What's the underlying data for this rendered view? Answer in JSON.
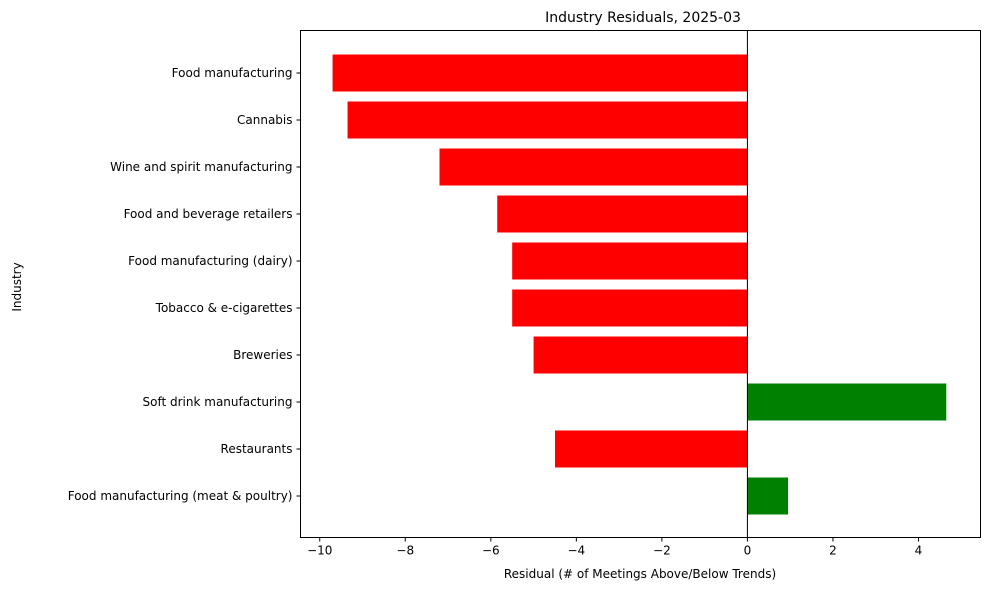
{
  "chart_data": {
    "type": "bar",
    "orientation": "horizontal",
    "title": "Industry Residuals, 2025-03",
    "xlabel": "Residual (# of Meetings Above/Below Trends)",
    "ylabel": "Industry",
    "xlim": [
      -10.45,
      5.45
    ],
    "xticks": [
      -10,
      -8,
      -6,
      -4,
      -2,
      0,
      2,
      4
    ],
    "xtick_labels": [
      "−10",
      "−8",
      "−6",
      "−4",
      "−2",
      "0",
      "2",
      "4"
    ],
    "categories": [
      "Food manufacturing",
      "Cannabis",
      "Wine and spirit manufacturing",
      "Food and beverage retailers",
      "Food manufacturing (dairy)",
      "Tobacco & e-cigarettes",
      "Breweries",
      "Soft drink manufacturing",
      "Restaurants",
      "Food manufacturing (meat & poultry)"
    ],
    "values": [
      -9.7,
      -9.35,
      -7.2,
      -5.85,
      -5.5,
      -5.5,
      -5.0,
      4.65,
      -4.5,
      0.95
    ],
    "colors": {
      "negative": "#ff0000",
      "positive": "#008000"
    },
    "zero_line": true,
    "grid": false
  }
}
